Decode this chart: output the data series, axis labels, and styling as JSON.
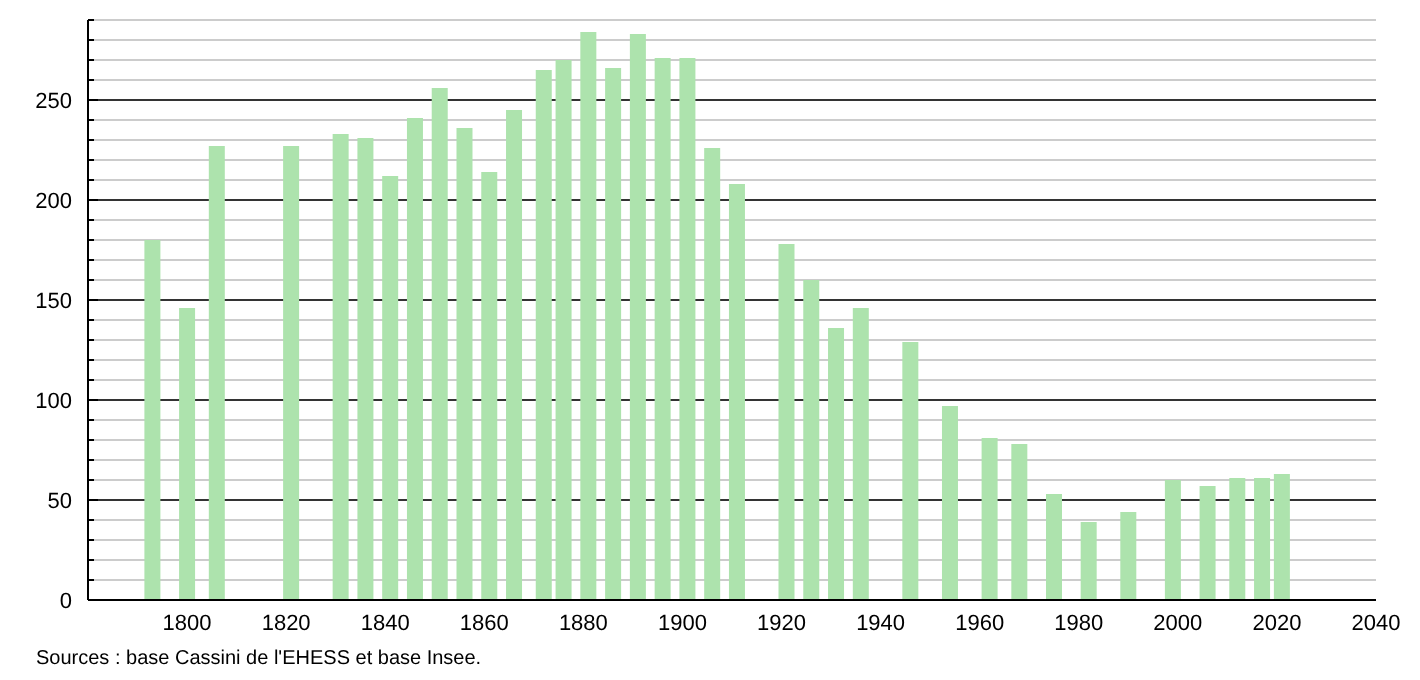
{
  "chart_data": {
    "type": "bar",
    "x": [
      1793,
      1800,
      1806,
      1821,
      1831,
      1836,
      1841,
      1846,
      1851,
      1856,
      1861,
      1866,
      1872,
      1876,
      1881,
      1886,
      1891,
      1896,
      1901,
      1906,
      1911,
      1921,
      1926,
      1931,
      1936,
      1946,
      1954,
      1962,
      1968,
      1975,
      1982,
      1990,
      1999,
      2006,
      2012,
      2017,
      2021
    ],
    "values": [
      180,
      146,
      227,
      227,
      233,
      231,
      212,
      241,
      256,
      236,
      214,
      245,
      265,
      270,
      284,
      266,
      283,
      271,
      271,
      226,
      208,
      178,
      160,
      136,
      146,
      129,
      97,
      81,
      78,
      53,
      39,
      44,
      60,
      57,
      61,
      61,
      63
    ],
    "color": "#ade3ad",
    "xlim": [
      1780,
      2040
    ],
    "xticks": [
      1800,
      1820,
      1840,
      1860,
      1880,
      1900,
      1920,
      1940,
      1960,
      1980,
      2000,
      2020,
      2040
    ],
    "ylim": [
      0,
      290
    ],
    "yticks": [
      0,
      {
        "value": 10,
        "label": null
      },
      {
        "value": 20,
        "label": null
      },
      {
        "value": 30,
        "label": null
      },
      {
        "value": 40,
        "label": null
      },
      50,
      {
        "value": 60,
        "label": null
      },
      {
        "value": 70,
        "label": null
      },
      {
        "value": 80,
        "label": null
      },
      {
        "value": 90,
        "label": null
      },
      100,
      {
        "value": 110,
        "label": null
      },
      {
        "value": 120,
        "label": null
      },
      {
        "value": 130,
        "label": null
      },
      {
        "value": 140,
        "label": null
      },
      150,
      {
        "value": 160,
        "label": null
      },
      {
        "value": 170,
        "label": null
      },
      {
        "value": 180,
        "label": null
      },
      {
        "value": 190,
        "label": null
      },
      200,
      {
        "value": 210,
        "label": null
      },
      {
        "value": 220,
        "label": null
      },
      {
        "value": 230,
        "label": null
      },
      {
        "value": 240,
        "label": null
      },
      250,
      {
        "value": 260,
        "label": null
      },
      {
        "value": 270,
        "label": null
      },
      {
        "value": 280,
        "label": null
      },
      {
        "value": 290,
        "label": null
      }
    ],
    "grid": "y",
    "annotations": [
      "Sources : base Cassini de l'EHESS et base Insee."
    ]
  }
}
